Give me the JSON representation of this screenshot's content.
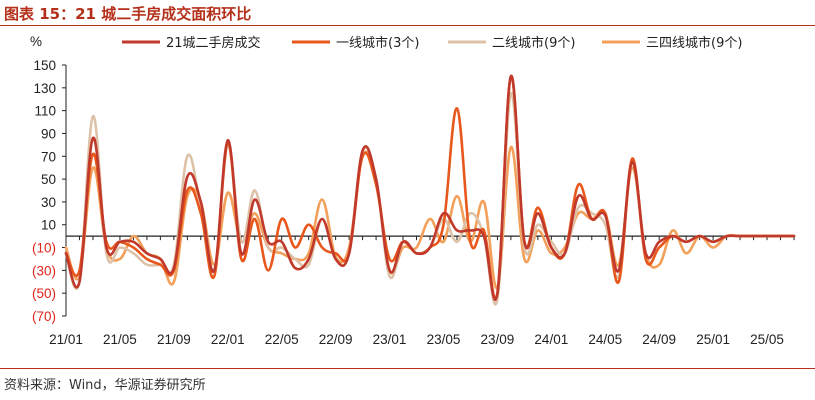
{
  "title": "图表 15：21 城二手房成交面积环比",
  "source": "资料来源：Wind，华源证券研究所",
  "chart_data": {
    "type": "line",
    "ylabel": "%",
    "ylim": [
      -70,
      150
    ],
    "yticks": [
      150,
      130,
      110,
      90,
      70,
      50,
      30,
      10,
      -10,
      -30,
      -50,
      -70
    ],
    "ytick_labels": [
      "150",
      "130",
      "110",
      "90",
      "70",
      "50",
      "30",
      "10",
      "(10)",
      "(30)",
      "(50)",
      "(70)"
    ],
    "negative_tick_color": "#e0241b",
    "x": [
      "21/01",
      "21/02",
      "21/03",
      "21/04",
      "21/05",
      "21/06",
      "21/07",
      "21/08",
      "21/09",
      "21/10",
      "21/11",
      "21/12",
      "22/01",
      "22/02",
      "22/03",
      "22/04",
      "22/05",
      "22/06",
      "22/07",
      "22/08",
      "22/09",
      "22/10",
      "22/11",
      "22/12",
      "23/01",
      "23/02",
      "23/03",
      "23/04",
      "23/05",
      "23/06",
      "23/07",
      "23/08",
      "23/09",
      "23/10",
      "23/11",
      "23/12",
      "24/01",
      "24/02",
      "24/03",
      "24/04",
      "24/05",
      "24/06",
      "24/07",
      "24/08",
      "24/09",
      "24/10",
      "24/11",
      "24/12",
      "25/01",
      "25/02",
      "25/03",
      "25/04",
      "25/05",
      "25/06",
      "25/07"
    ],
    "xtick_labels": [
      "21/01",
      "21/05",
      "21/09",
      "22/01",
      "22/05",
      "22/09",
      "23/01",
      "23/05",
      "23/09",
      "24/01",
      "24/05",
      "24/09",
      "25/01",
      "25/05"
    ],
    "grid": false,
    "legend_position": "top",
    "series": [
      {
        "name": "21城二手房成交",
        "color": "#c0392b",
        "values": [
          -15,
          -40,
          86,
          -10,
          -5,
          -5,
          -15,
          -20,
          -28,
          52,
          30,
          -30,
          84,
          -15,
          32,
          -5,
          -5,
          -28,
          -20,
          15,
          -20,
          -15,
          75,
          50,
          -30,
          -5,
          -15,
          -10,
          20,
          5,
          5,
          0,
          -50,
          140,
          -5,
          20,
          -10,
          -15,
          35,
          15,
          18,
          -30,
          65,
          -15,
          -5,
          0,
          -5,
          0,
          -5,
          0,
          0,
          0,
          0,
          0,
          0
        ]
      },
      {
        "name": "一线城市(3个)",
        "color": "#e8581c",
        "values": [
          -15,
          -30,
          72,
          -5,
          -5,
          -10,
          -20,
          -25,
          -30,
          40,
          20,
          -35,
          82,
          -20,
          15,
          -30,
          15,
          -10,
          10,
          -10,
          -15,
          -15,
          70,
          45,
          -20,
          -5,
          -15,
          -10,
          10,
          112,
          -5,
          5,
          -50,
          140,
          -5,
          25,
          -10,
          -15,
          45,
          15,
          20,
          -40,
          68,
          -20,
          -10,
          0,
          -5,
          0,
          -5,
          0,
          0,
          0,
          0,
          0,
          0
        ]
      },
      {
        "name": "二线城市(9个)",
        "color": "#ddc2a8",
        "values": [
          -15,
          -40,
          105,
          -15,
          -10,
          -15,
          -25,
          -25,
          -25,
          70,
          25,
          -30,
          80,
          -5,
          40,
          -10,
          -10,
          -20,
          -25,
          15,
          -20,
          -15,
          74,
          50,
          -35,
          -5,
          -15,
          -10,
          15,
          -5,
          20,
          0,
          -55,
          125,
          -10,
          10,
          -5,
          -15,
          25,
          20,
          10,
          -35,
          65,
          -15,
          -5,
          0,
          -5,
          0,
          -5,
          0,
          0,
          0,
          0,
          0,
          0
        ]
      },
      {
        "name": "三四线城市(9个)",
        "color": "#f2a05a",
        "values": [
          -10,
          -35,
          60,
          -10,
          -20,
          0,
          -15,
          -20,
          -40,
          35,
          30,
          -25,
          38,
          -5,
          20,
          -10,
          -15,
          -20,
          -15,
          32,
          -18,
          -10,
          70,
          50,
          -30,
          -10,
          -10,
          15,
          -5,
          35,
          -5,
          30,
          -45,
          78,
          -20,
          5,
          -15,
          -10,
          20,
          15,
          20,
          -25,
          60,
          -15,
          -25,
          5,
          -15,
          0,
          -10,
          0,
          0,
          0,
          0,
          0,
          0
        ]
      }
    ]
  }
}
